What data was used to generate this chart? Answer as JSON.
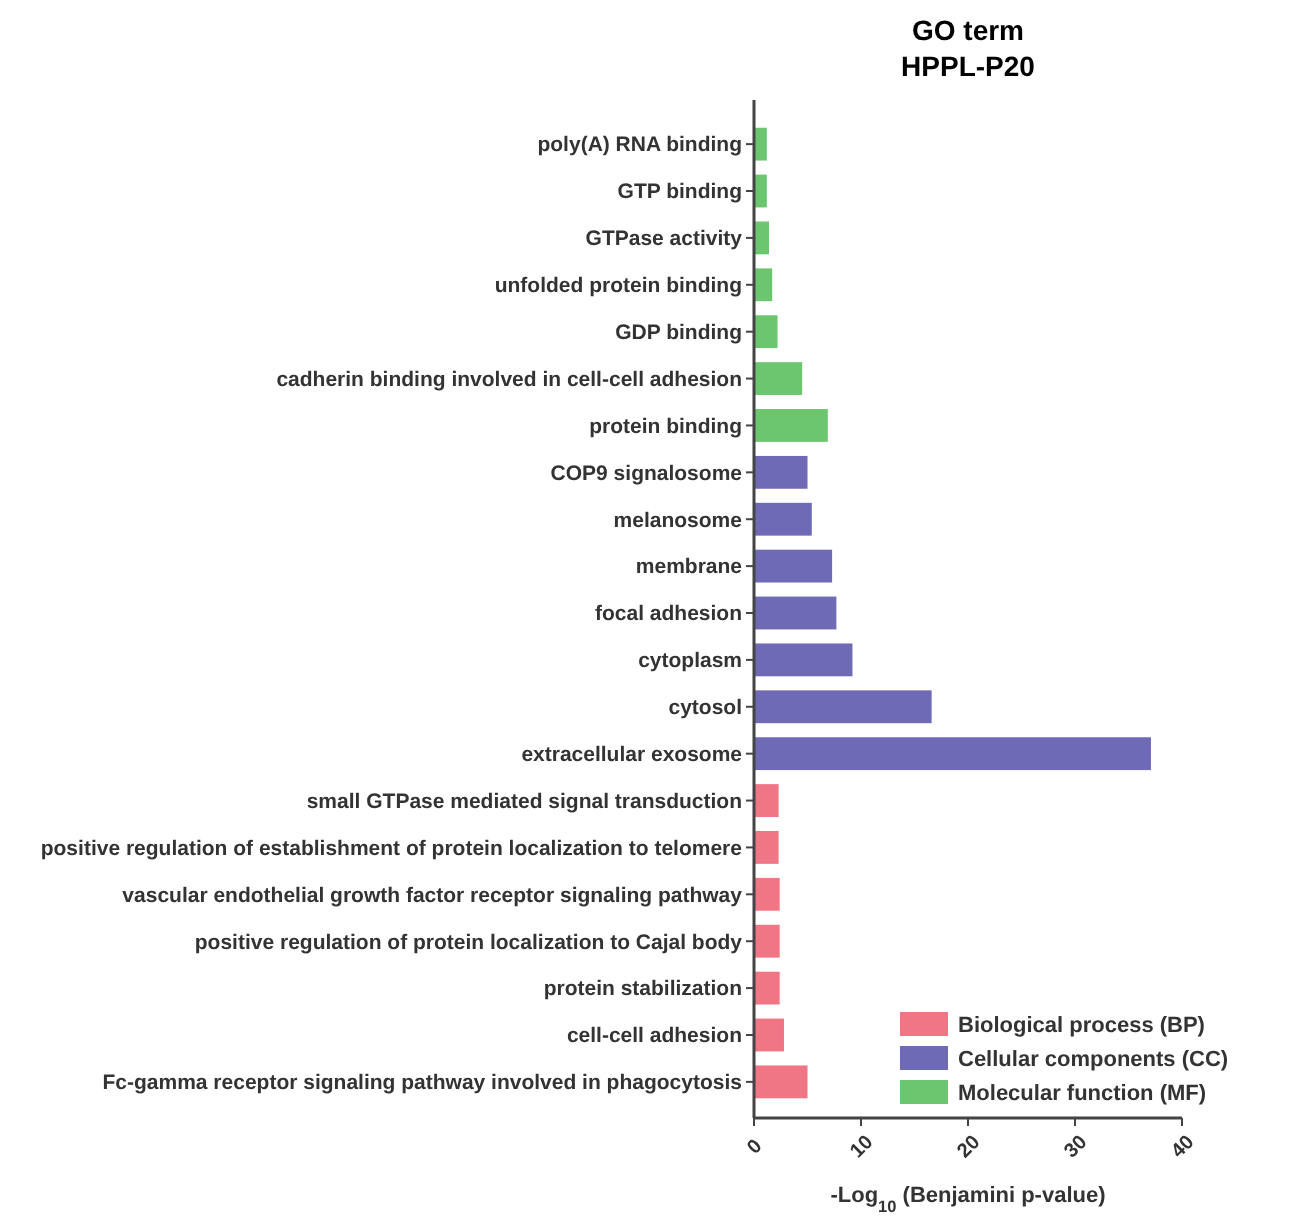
{
  "chart_data": {
    "type": "bar",
    "orientation": "horizontal",
    "title": "GO term",
    "subtitle": "HPPL-P20",
    "xlabel": "-Log$_{10}$ (Benjamini p-value)",
    "categories": [
      "poly(A) RNA binding",
      "GTP binding",
      "GTPase activity",
      "unfolded protein binding",
      "GDP binding",
      "cadherin binding involved in cell-cell adhesion",
      "protein binding",
      "COP9 signalosome",
      "melanosome",
      "membrane",
      "focal adhesion",
      "cytoplasm",
      "cytosol",
      "extracellular exosome",
      "small GTPase mediated signal transduction",
      "positive regulation of establishment of protein localization to telomere",
      "vascular endothelial growth factor receptor signaling pathway",
      "positive regulation of protein localization to Cajal body",
      "protein stabilization",
      "cell-cell adhesion",
      "Fc-gamma receptor signaling pathway involved in phagocytosis"
    ],
    "series": [
      {
        "name": "Biological process (BP)",
        "color": "#f07585",
        "values": [
          null,
          null,
          null,
          null,
          null,
          null,
          null,
          null,
          null,
          null,
          null,
          null,
          null,
          null,
          2.3,
          2.3,
          2.4,
          2.4,
          2.4,
          2.8,
          5.0
        ]
      },
      {
        "name": "Cellular components (CC)",
        "color": "#6f6ab5",
        "values": [
          null,
          null,
          null,
          null,
          null,
          null,
          null,
          5.0,
          5.4,
          7.3,
          7.7,
          9.2,
          16.6,
          37.1,
          null,
          null,
          null,
          null,
          null,
          null,
          null
        ]
      },
      {
        "name": "Molecular function (MF)",
        "color": "#6cc56f",
        "values": [
          1.2,
          1.2,
          1.4,
          1.7,
          2.2,
          4.5,
          6.9,
          null,
          null,
          null,
          null,
          null,
          null,
          null,
          null,
          null,
          null,
          null,
          null,
          null,
          null
        ]
      }
    ],
    "xlim": [
      0,
      40
    ],
    "xticks": [
      0,
      10,
      20,
      30,
      40
    ],
    "legend": "bottom right"
  }
}
